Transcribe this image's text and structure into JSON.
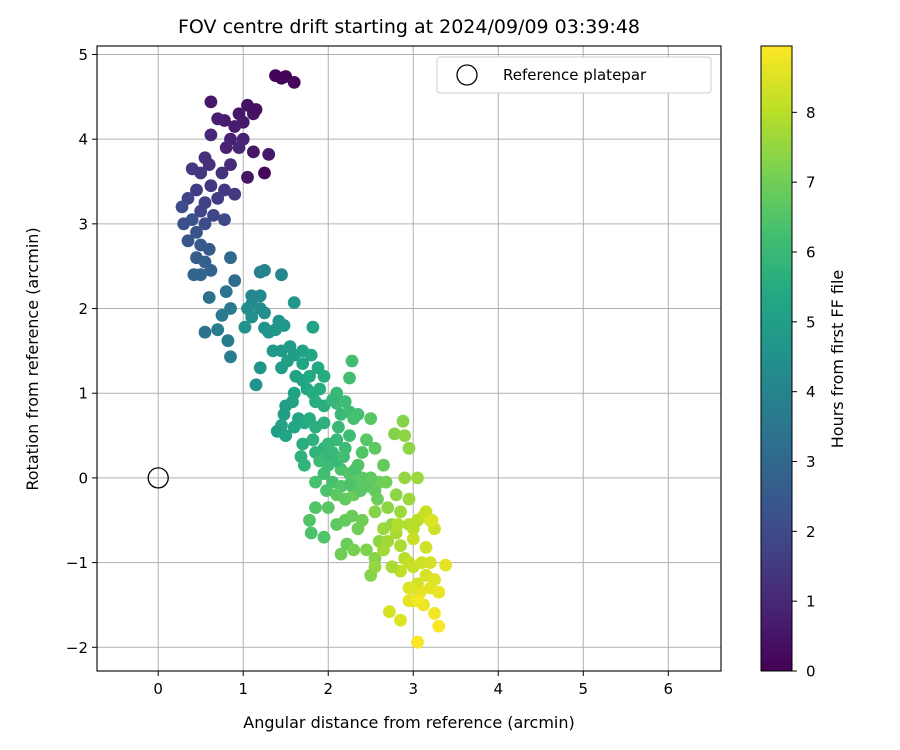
{
  "chart_data": {
    "type": "scatter",
    "title": "FOV centre drift starting at 2024/09/09 03:39:48",
    "xlabel": "Angular distance from reference (arcmin)",
    "ylabel": "Rotation from reference (arcmin)",
    "xlim": [
      -0.72,
      6.62
    ],
    "ylim": [
      -2.28,
      5.1
    ],
    "xticks": [
      0,
      1,
      2,
      3,
      4,
      5,
      6
    ],
    "yticks": [
      -2,
      -1,
      0,
      1,
      2,
      3,
      4,
      5
    ],
    "grid": true,
    "legend": {
      "placement": "top-right",
      "entries": [
        "Reference platepar"
      ]
    },
    "reference_point": {
      "x": 0,
      "y": 0
    },
    "colorbar": {
      "label": "Hours from first FF file",
      "colormap": "viridis",
      "range": [
        0,
        8.95
      ],
      "ticks": [
        0,
        1,
        2,
        3,
        4,
        5,
        6,
        7,
        8
      ]
    },
    "color_encoding": "hours",
    "points": [
      [
        1.38,
        4.75,
        0.1
      ],
      [
        1.45,
        4.72,
        0.1
      ],
      [
        1.5,
        4.74,
        0.05
      ],
      [
        1.6,
        4.67,
        0.15
      ],
      [
        1.05,
        4.4,
        0.4
      ],
      [
        0.62,
        4.44,
        0.6
      ],
      [
        1.12,
        4.3,
        0.45
      ],
      [
        0.95,
        4.3,
        0.55
      ],
      [
        1.15,
        4.35,
        0.35
      ],
      [
        1.0,
        4.2,
        0.6
      ],
      [
        0.9,
        4.15,
        0.7
      ],
      [
        0.78,
        4.22,
        0.65
      ],
      [
        0.7,
        4.24,
        0.75
      ],
      [
        1.0,
        4.0,
        0.9
      ],
      [
        0.85,
        4.0,
        0.8
      ],
      [
        0.62,
        4.05,
        1.0
      ],
      [
        0.8,
        3.9,
        0.85
      ],
      [
        0.95,
        3.9,
        1.0
      ],
      [
        1.3,
        3.82,
        0.55
      ],
      [
        1.25,
        3.6,
        0.2
      ],
      [
        1.12,
        3.85,
        0.5
      ],
      [
        1.05,
        3.55,
        0.5
      ],
      [
        0.55,
        3.78,
        1.2
      ],
      [
        0.6,
        3.7,
        1.2
      ],
      [
        0.75,
        3.6,
        1.3
      ],
      [
        0.5,
        3.6,
        1.4
      ],
      [
        0.4,
        3.65,
        1.5
      ],
      [
        0.85,
        3.7,
        1.1
      ],
      [
        0.78,
        3.4,
        1.4
      ],
      [
        0.9,
        3.35,
        1.5
      ],
      [
        0.7,
        3.3,
        1.6
      ],
      [
        0.62,
        3.45,
        1.4
      ],
      [
        0.45,
        3.4,
        1.6
      ],
      [
        0.55,
        3.25,
        1.7
      ],
      [
        0.35,
        3.3,
        1.8
      ],
      [
        0.5,
        3.15,
        1.8
      ],
      [
        0.65,
        3.1,
        1.9
      ],
      [
        0.78,
        3.05,
        2.0
      ],
      [
        0.28,
        3.2,
        2.1
      ],
      [
        0.3,
        3.0,
        2.2
      ],
      [
        0.4,
        3.05,
        2.2
      ],
      [
        0.55,
        3.0,
        2.1
      ],
      [
        0.45,
        2.9,
        2.3
      ],
      [
        0.35,
        2.8,
        2.4
      ],
      [
        0.5,
        2.75,
        2.5
      ],
      [
        0.6,
        2.7,
        2.5
      ],
      [
        0.45,
        2.6,
        2.6
      ],
      [
        0.55,
        2.55,
        2.7
      ],
      [
        0.62,
        2.45,
        2.8
      ],
      [
        0.5,
        2.4,
        2.9
      ],
      [
        0.42,
        2.4,
        2.9
      ],
      [
        0.85,
        2.6,
        3.0
      ],
      [
        0.9,
        2.33,
        3.2
      ],
      [
        0.6,
        2.13,
        3.3
      ],
      [
        0.55,
        1.72,
        3.4
      ],
      [
        0.8,
        2.2,
        3.4
      ],
      [
        0.85,
        2.0,
        3.6
      ],
      [
        0.75,
        1.92,
        3.6
      ],
      [
        0.82,
        1.62,
        3.7
      ],
      [
        0.85,
        1.43,
        3.8
      ],
      [
        0.7,
        1.75,
        3.8
      ],
      [
        1.2,
        2.43,
        3.9
      ],
      [
        1.25,
        2.45,
        4.0
      ],
      [
        1.45,
        2.4,
        4.1
      ],
      [
        1.1,
        2.15,
        4.1
      ],
      [
        1.2,
        2.15,
        4.2
      ],
      [
        1.1,
        2.05,
        4.2
      ],
      [
        1.05,
        2.0,
        4.3
      ],
      [
        1.2,
        2.0,
        4.3
      ],
      [
        1.25,
        1.95,
        4.4
      ],
      [
        1.1,
        1.9,
        4.4
      ],
      [
        1.02,
        1.78,
        4.5
      ],
      [
        1.25,
        1.77,
        4.5
      ],
      [
        1.3,
        1.72,
        4.6
      ],
      [
        1.42,
        1.85,
        4.6
      ],
      [
        1.48,
        1.8,
        4.7
      ],
      [
        1.38,
        1.75,
        4.7
      ],
      [
        1.6,
        2.07,
        4.7
      ],
      [
        1.35,
        1.5,
        4.8
      ],
      [
        1.45,
        1.5,
        4.8
      ],
      [
        1.55,
        1.55,
        4.9
      ],
      [
        1.2,
        1.3,
        4.6
      ],
      [
        1.15,
        1.1,
        4.5
      ],
      [
        1.45,
        1.3,
        4.9
      ],
      [
        1.52,
        1.38,
        5.0
      ],
      [
        1.6,
        1.45,
        5.0
      ],
      [
        1.7,
        1.5,
        5.1
      ],
      [
        1.62,
        1.2,
        5.1
      ],
      [
        1.7,
        1.15,
        5.2
      ],
      [
        1.6,
        1.0,
        5.2
      ],
      [
        1.75,
        1.05,
        5.3
      ],
      [
        1.82,
        1.78,
        5.2
      ],
      [
        1.8,
        1.45,
        5.3
      ],
      [
        1.7,
        1.35,
        5.3
      ],
      [
        1.88,
        1.3,
        5.4
      ],
      [
        1.78,
        1.2,
        5.4
      ],
      [
        1.9,
        1.05,
        5.5
      ],
      [
        1.95,
        1.2,
        5.5
      ],
      [
        1.82,
        1.0,
        5.5
      ],
      [
        1.85,
        0.9,
        5.6
      ],
      [
        1.95,
        0.85,
        5.6
      ],
      [
        1.5,
        0.85,
        5.0
      ],
      [
        1.48,
        0.75,
        5.0
      ],
      [
        1.58,
        0.9,
        5.1
      ],
      [
        1.65,
        0.7,
        5.2
      ],
      [
        1.45,
        0.62,
        5.1
      ],
      [
        1.4,
        0.55,
        5.0
      ],
      [
        1.5,
        0.5,
        5.2
      ],
      [
        1.6,
        0.6,
        5.3
      ],
      [
        1.72,
        0.65,
        5.4
      ],
      [
        1.78,
        0.7,
        5.5
      ],
      [
        1.85,
        0.6,
        5.6
      ],
      [
        1.95,
        0.65,
        5.7
      ],
      [
        1.82,
        0.45,
        5.7
      ],
      [
        1.7,
        0.4,
        5.6
      ],
      [
        1.85,
        0.3,
        5.8
      ],
      [
        1.95,
        0.35,
        5.8
      ],
      [
        1.68,
        0.25,
        5.7
      ],
      [
        1.72,
        0.15,
        5.8
      ],
      [
        2.0,
        0.4,
        5.9
      ],
      [
        2.1,
        0.45,
        6.0
      ],
      [
        2.05,
        0.3,
        6.0
      ],
      [
        2.2,
        0.35,
        6.1
      ],
      [
        2.25,
        0.5,
        6.1
      ],
      [
        2.15,
        0.75,
        6.0
      ],
      [
        2.25,
        0.78,
        6.1
      ],
      [
        2.35,
        0.75,
        6.2
      ],
      [
        2.1,
        0.88,
        6.0
      ],
      [
        2.2,
        0.9,
        6.1
      ],
      [
        2.28,
        1.38,
        6.2
      ],
      [
        2.25,
        1.18,
        6.2
      ],
      [
        2.1,
        1.0,
        6.0
      ],
      [
        2.05,
        0.92,
        5.9
      ],
      [
        2.3,
        0.7,
        6.3
      ],
      [
        2.0,
        0.15,
        6.1
      ],
      [
        1.95,
        0.05,
        6.2
      ],
      [
        1.9,
        0.2,
        6.1
      ],
      [
        1.85,
        -0.05,
        6.3
      ],
      [
        2.05,
        -0.05,
        6.3
      ],
      [
        1.98,
        -0.15,
        6.4
      ],
      [
        2.15,
        0.1,
        6.4
      ],
      [
        2.25,
        0.05,
        6.5
      ],
      [
        2.15,
        -0.1,
        6.5
      ],
      [
        2.3,
        -0.05,
        6.6
      ],
      [
        2.35,
        0.15,
        6.5
      ],
      [
        2.4,
        0.3,
        6.5
      ],
      [
        2.45,
        0.45,
        6.6
      ],
      [
        2.5,
        0.7,
        6.6
      ],
      [
        2.55,
        0.35,
        6.7
      ],
      [
        2.4,
        0.0,
        6.7
      ],
      [
        2.48,
        -0.1,
        6.8
      ],
      [
        2.55,
        -0.15,
        6.8
      ],
      [
        2.6,
        -0.05,
        6.9
      ],
      [
        2.65,
        0.15,
        6.8
      ],
      [
        2.68,
        -0.05,
        7.0
      ],
      [
        2.3,
        -0.2,
        6.9
      ],
      [
        2.2,
        -0.25,
        6.8
      ],
      [
        2.1,
        -0.2,
        6.7
      ],
      [
        2.0,
        -0.35,
        6.6
      ],
      [
        1.85,
        -0.35,
        6.5
      ],
      [
        1.78,
        -0.5,
        6.5
      ],
      [
        1.8,
        -0.65,
        6.4
      ],
      [
        1.95,
        -0.7,
        6.5
      ],
      [
        2.1,
        -0.55,
        6.7
      ],
      [
        2.2,
        -0.5,
        6.8
      ],
      [
        2.28,
        -0.45,
        6.9
      ],
      [
        2.35,
        -0.6,
        7.0
      ],
      [
        2.4,
        -0.5,
        7.0
      ],
      [
        2.22,
        -0.78,
        6.9
      ],
      [
        2.15,
        -0.9,
        7.0
      ],
      [
        2.3,
        -0.85,
        7.1
      ],
      [
        2.45,
        -0.85,
        7.2
      ],
      [
        2.5,
        -1.15,
        7.3
      ],
      [
        2.55,
        -0.95,
        7.3
      ],
      [
        2.6,
        -0.75,
        7.4
      ],
      [
        2.55,
        -0.4,
        7.3
      ],
      [
        2.7,
        -0.35,
        7.4
      ],
      [
        2.75,
        -0.55,
        7.5
      ],
      [
        2.85,
        -0.4,
        7.6
      ],
      [
        2.8,
        -0.2,
        7.4
      ],
      [
        2.9,
        0.0,
        7.5
      ],
      [
        2.95,
        -0.25,
        7.6
      ],
      [
        3.05,
        0.0,
        7.6
      ],
      [
        2.78,
        0.52,
        7.3
      ],
      [
        2.9,
        0.5,
        7.4
      ],
      [
        2.88,
        0.67,
        7.3
      ],
      [
        2.95,
        0.35,
        7.4
      ],
      [
        2.0,
        0.28,
        5.9
      ],
      [
        2.1,
        0.2,
        6.0
      ],
      [
        2.12,
        0.6,
        6.0
      ],
      [
        2.18,
        0.25,
        6.2
      ],
      [
        2.25,
        -0.08,
        6.4
      ],
      [
        2.32,
        0.1,
        6.4
      ],
      [
        2.38,
        -0.15,
        6.6
      ],
      [
        2.45,
        -0.05,
        6.6
      ],
      [
        2.5,
        0.0,
        6.7
      ],
      [
        2.58,
        -0.25,
        6.9
      ],
      [
        2.65,
        -0.6,
        7.6
      ],
      [
        2.7,
        -0.75,
        7.7
      ],
      [
        2.8,
        -0.65,
        7.8
      ],
      [
        2.85,
        -0.8,
        7.8
      ],
      [
        2.95,
        -0.55,
        7.9
      ],
      [
        3.0,
        -0.6,
        8.0
      ],
      [
        3.05,
        -0.5,
        8.0
      ],
      [
        3.12,
        -0.45,
        8.1
      ],
      [
        3.15,
        -0.4,
        8.2
      ],
      [
        3.2,
        -0.5,
        8.3
      ],
      [
        3.25,
        -0.6,
        8.3
      ],
      [
        2.9,
        -0.95,
        8.0
      ],
      [
        2.95,
        -1.0,
        8.1
      ],
      [
        2.85,
        -1.1,
        8.1
      ],
      [
        3.0,
        -1.05,
        8.2
      ],
      [
        3.1,
        -1.0,
        8.3
      ],
      [
        3.2,
        -1.0,
        8.4
      ],
      [
        3.15,
        -1.15,
        8.4
      ],
      [
        3.25,
        -1.2,
        8.5
      ],
      [
        3.05,
        -1.25,
        8.4
      ],
      [
        2.95,
        -1.3,
        8.5
      ],
      [
        3.08,
        -1.35,
        8.6
      ],
      [
        3.2,
        -1.3,
        8.6
      ],
      [
        3.3,
        -1.35,
        8.7
      ],
      [
        3.38,
        -1.03,
        8.6
      ],
      [
        3.0,
        -1.45,
        8.7
      ],
      [
        3.12,
        -1.5,
        8.7
      ],
      [
        2.95,
        -1.45,
        8.6
      ],
      [
        3.25,
        -1.6,
        8.8
      ],
      [
        3.05,
        -1.45,
        8.8
      ],
      [
        3.3,
        -1.75,
        8.9
      ],
      [
        3.05,
        -1.94,
        8.9
      ],
      [
        2.85,
        -1.68,
        8.5
      ],
      [
        2.72,
        -1.58,
        8.4
      ],
      [
        2.55,
        -1.05,
        7.5
      ],
      [
        2.75,
        -1.05,
        7.8
      ],
      [
        2.65,
        -0.85,
        7.7
      ],
      [
        2.82,
        -0.55,
        7.9
      ],
      [
        3.0,
        -0.72,
        8.2
      ],
      [
        3.15,
        -0.82,
        8.3
      ],
      [
        3.22,
        -0.5,
        8.5
      ]
    ]
  }
}
